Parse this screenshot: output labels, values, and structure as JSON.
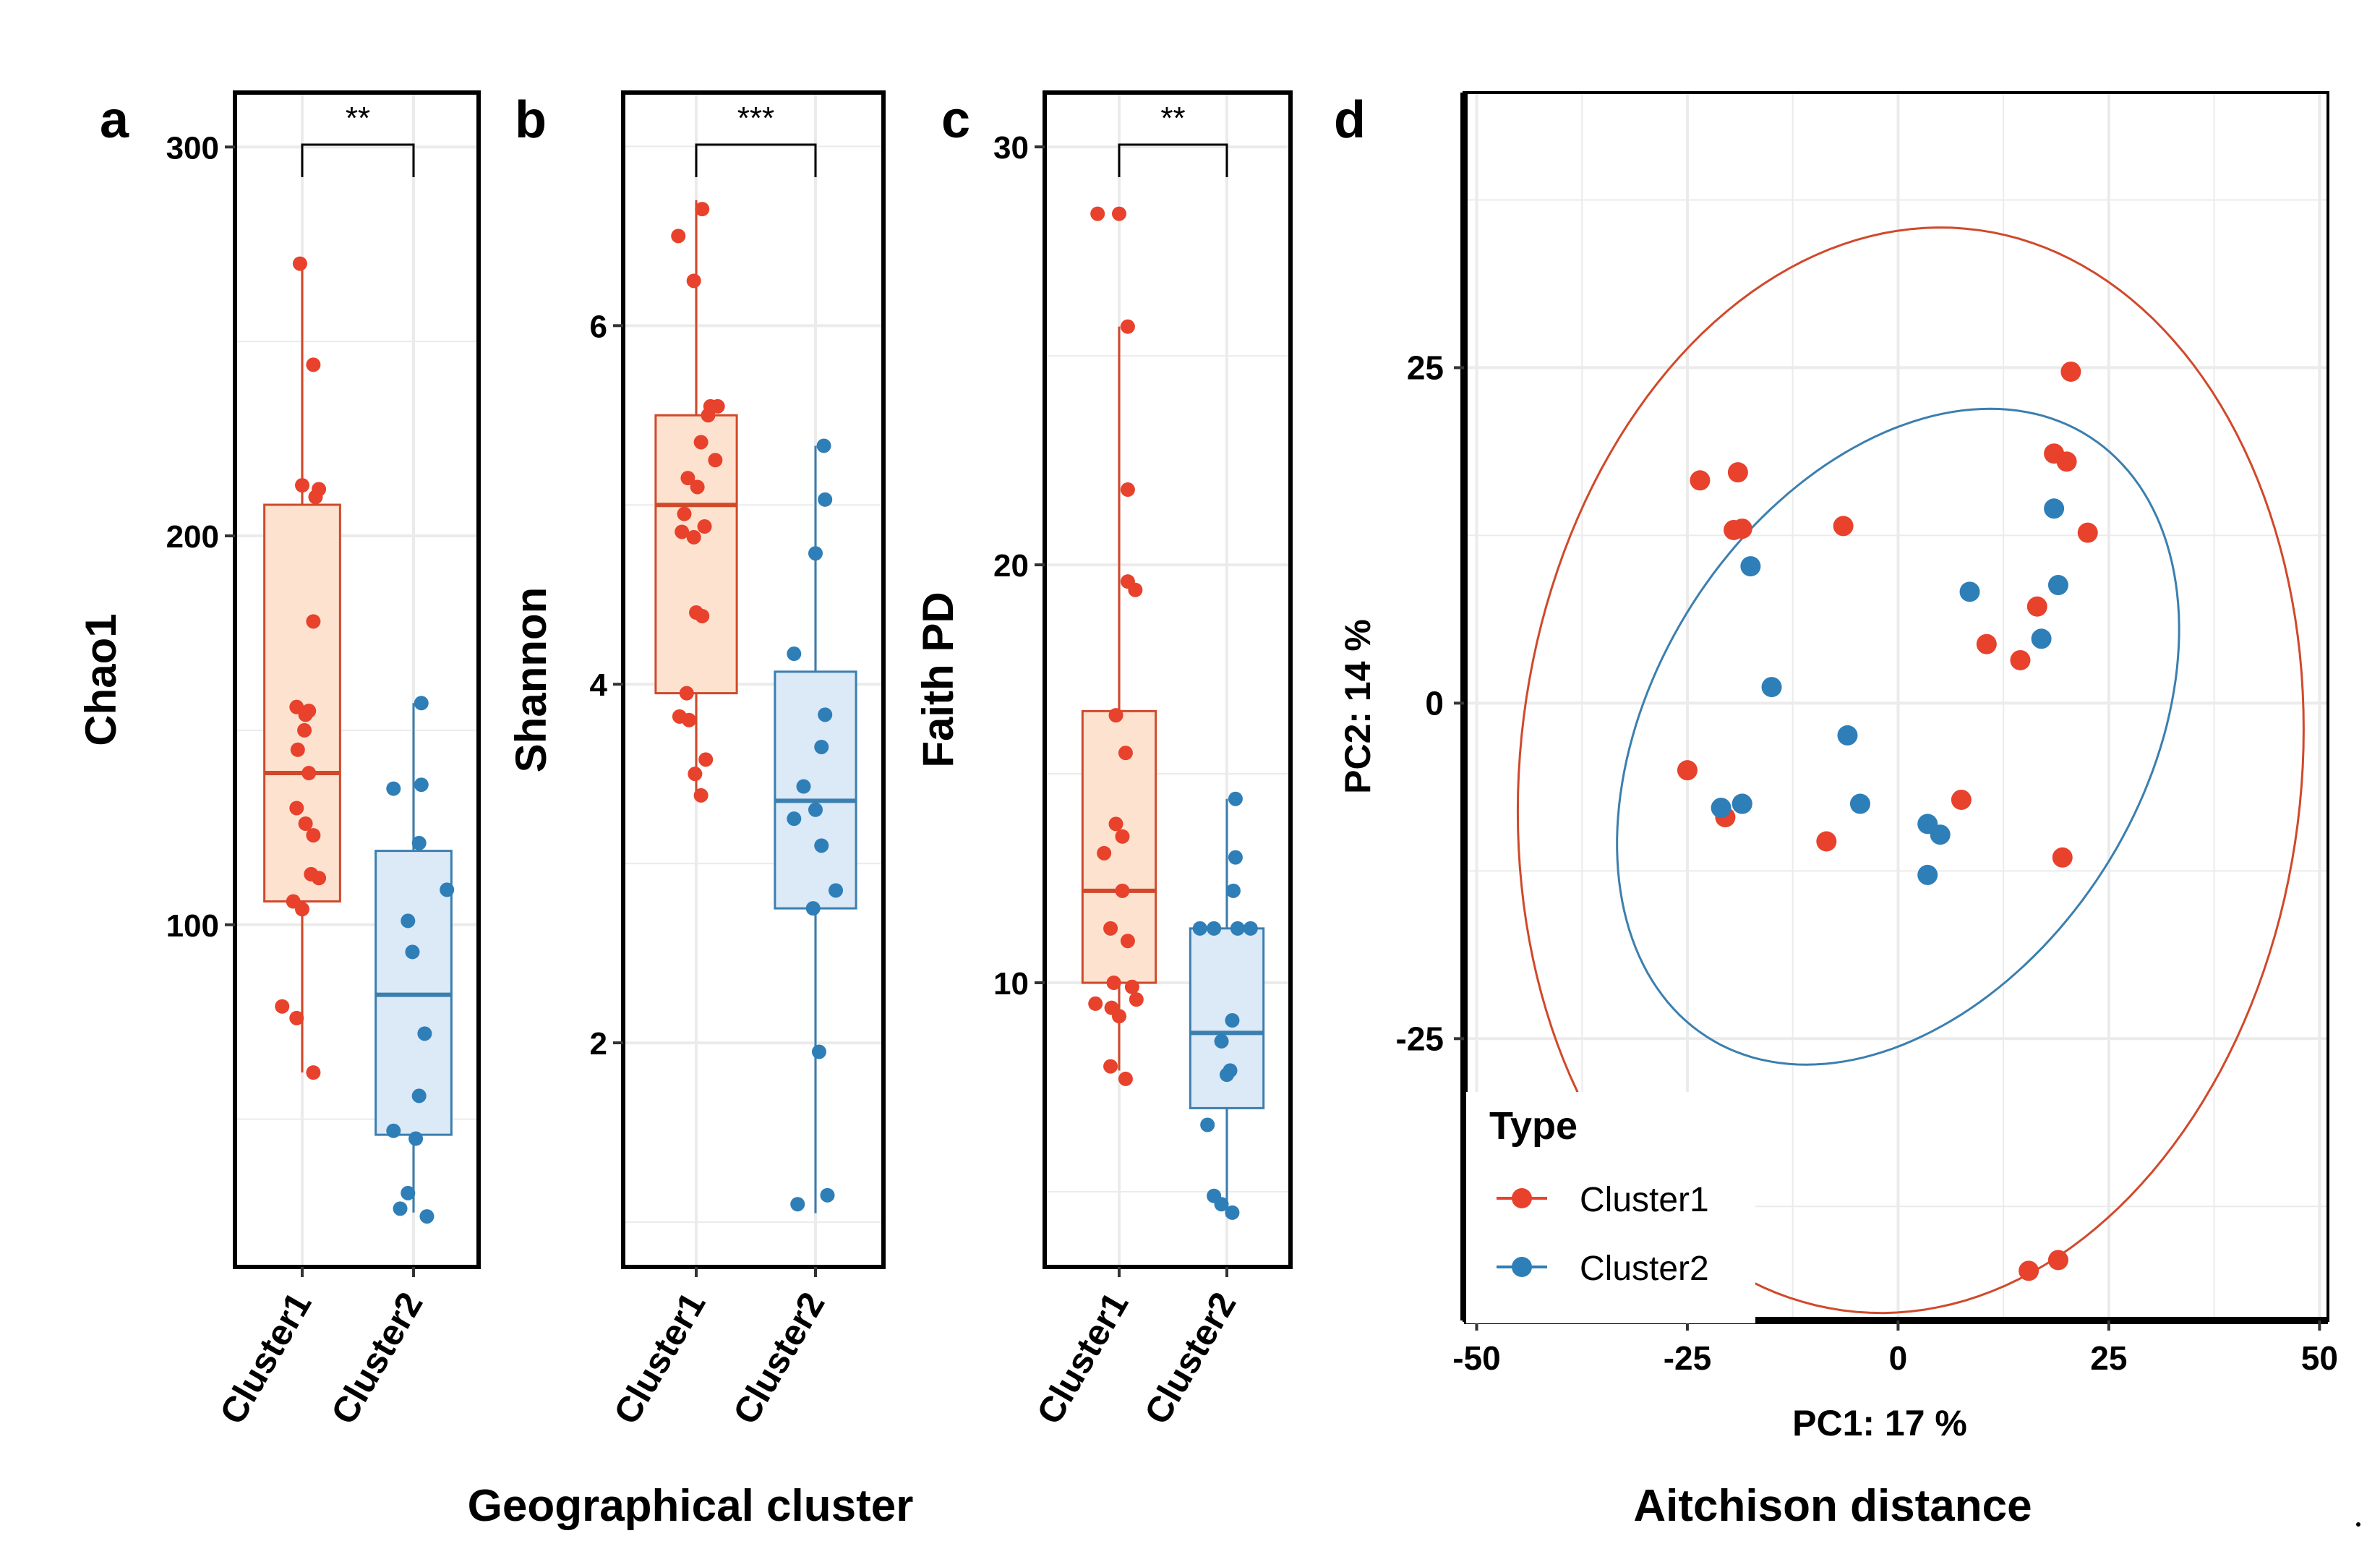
{
  "figure": {
    "bottom_label_left": "Geographical cluster",
    "bottom_label_right": "Aitchison distance"
  },
  "colors": {
    "cluster1": "#E8412C",
    "cluster1_fill": "#FDE3CF",
    "cluster1_line": "#D0492B",
    "cluster2": "#2E7EB8",
    "cluster2_fill": "#DCE9F6",
    "cluster2_line": "#3B7FAF",
    "grid": "#EBEBEB"
  },
  "chart_data": [
    {
      "id": "a",
      "type": "box",
      "panel_label": "a",
      "ylabel": "Chao1",
      "categories": [
        "Cluster1",
        "Cluster2"
      ],
      "yticks": [
        100,
        200,
        300
      ],
      "ylim": [
        12,
        314
      ],
      "significance": "**",
      "boxes": [
        {
          "name": "Cluster1",
          "q1": 106,
          "median": 139,
          "q3": 208,
          "whisker_low": 62,
          "whisker_high": 270
        },
        {
          "name": "Cluster2",
          "q1": 46,
          "median": 82,
          "q3": 119,
          "whisker_low": 26,
          "whisker_high": 157
        }
      ],
      "points": [
        [
          [
            -0.02,
            270
          ],
          [
            0.1,
            244
          ],
          [
            0.0,
            213
          ],
          [
            0.12,
            210
          ],
          [
            0.15,
            212
          ],
          [
            0.1,
            178
          ],
          [
            -0.05,
            156
          ],
          [
            0.06,
            155
          ],
          [
            0.03,
            154
          ],
          [
            0.02,
            150
          ],
          [
            -0.04,
            145
          ],
          [
            0.06,
            139
          ],
          [
            -0.05,
            130
          ],
          [
            0.03,
            126
          ],
          [
            0.1,
            123
          ],
          [
            0.08,
            113
          ],
          [
            0.15,
            112
          ],
          [
            -0.08,
            106
          ],
          [
            0.0,
            104
          ],
          [
            -0.18,
            79
          ],
          [
            -0.05,
            76
          ],
          [
            0.1,
            62
          ]
        ],
        [
          [
            0.07,
            157
          ],
          [
            -0.18,
            135
          ],
          [
            0.07,
            136
          ],
          [
            0.05,
            121
          ],
          [
            0.3,
            109
          ],
          [
            -0.05,
            101
          ],
          [
            -0.01,
            93
          ],
          [
            0.1,
            72
          ],
          [
            0.05,
            56
          ],
          [
            -0.18,
            47
          ],
          [
            0.02,
            45
          ],
          [
            -0.05,
            31
          ],
          [
            -0.12,
            27
          ],
          [
            0.12,
            25
          ]
        ]
      ]
    },
    {
      "id": "b",
      "type": "box",
      "panel_label": "b",
      "ylabel": "Shannon",
      "categories": [
        "Cluster1",
        "Cluster2"
      ],
      "yticks": [
        2,
        4,
        6
      ],
      "ylim": [
        0.75,
        7.3
      ],
      "significance": "***",
      "boxes": [
        {
          "name": "Cluster1",
          "q1": 3.95,
          "median": 5.0,
          "q3": 5.5,
          "whisker_low": 3.4,
          "whisker_high": 6.7
        },
        {
          "name": "Cluster2",
          "q1": 2.75,
          "median": 3.35,
          "q3": 4.07,
          "whisker_low": 1.05,
          "whisker_high": 5.33
        }
      ],
      "points": [
        [
          [
            0.05,
            6.65
          ],
          [
            -0.15,
            6.5
          ],
          [
            -0.02,
            6.25
          ],
          [
            0.12,
            5.55
          ],
          [
            0.18,
            5.55
          ],
          [
            0.1,
            5.5
          ],
          [
            0.04,
            5.35
          ],
          [
            0.16,
            5.25
          ],
          [
            -0.07,
            5.15
          ],
          [
            0.01,
            5.1
          ],
          [
            -0.1,
            4.95
          ],
          [
            0.07,
            4.88
          ],
          [
            -0.12,
            4.85
          ],
          [
            -0.02,
            4.82
          ],
          [
            0.0,
            4.4
          ],
          [
            0.05,
            4.38
          ],
          [
            -0.08,
            3.95
          ],
          [
            -0.14,
            3.82
          ],
          [
            -0.06,
            3.8
          ],
          [
            0.08,
            3.58
          ],
          [
            -0.01,
            3.5
          ],
          [
            0.04,
            3.38
          ]
        ],
        [
          [
            0.07,
            5.33
          ],
          [
            0.08,
            5.03
          ],
          [
            0.0,
            4.73
          ],
          [
            -0.18,
            4.17
          ],
          [
            0.08,
            3.83
          ],
          [
            0.05,
            3.65
          ],
          [
            -0.1,
            3.43
          ],
          [
            0.0,
            3.3
          ],
          [
            -0.18,
            3.25
          ],
          [
            0.05,
            3.1
          ],
          [
            0.17,
            2.85
          ],
          [
            -0.02,
            2.75
          ],
          [
            0.03,
            1.95
          ],
          [
            -0.15,
            1.1
          ],
          [
            0.1,
            1.15
          ]
        ]
      ]
    },
    {
      "id": "c",
      "type": "box",
      "panel_label": "c",
      "ylabel": "Faith  PD",
      "categories": [
        "Cluster1",
        "Cluster2"
      ],
      "yticks": [
        10,
        20,
        30
      ],
      "ylim": [
        3.2,
        31.3
      ],
      "significance": "**",
      "boxes": [
        {
          "name": "Cluster1",
          "q1": 10.0,
          "median": 12.2,
          "q3": 16.5,
          "whisker_low": 7.9,
          "whisker_high": 25.7
        },
        {
          "name": "Cluster2",
          "q1": 7.0,
          "median": 8.8,
          "q3": 11.3,
          "whisker_low": 4.4,
          "whisker_high": 14.4
        }
      ],
      "points": [
        [
          [
            -0.2,
            28.4
          ],
          [
            0.0,
            28.4
          ],
          [
            0.08,
            25.7
          ],
          [
            0.08,
            21.8
          ],
          [
            0.08,
            19.6
          ],
          [
            0.15,
            19.4
          ],
          [
            -0.03,
            16.4
          ],
          [
            0.06,
            15.5
          ],
          [
            -0.03,
            13.8
          ],
          [
            0.03,
            13.5
          ],
          [
            -0.14,
            13.1
          ],
          [
            0.03,
            12.2
          ],
          [
            -0.08,
            11.3
          ],
          [
            0.08,
            11.0
          ],
          [
            -0.05,
            10.0
          ],
          [
            0.12,
            9.9
          ],
          [
            0.16,
            9.6
          ],
          [
            -0.22,
            9.5
          ],
          [
            -0.07,
            9.4
          ],
          [
            0.0,
            9.2
          ],
          [
            -0.08,
            8.0
          ],
          [
            0.06,
            7.7
          ]
        ],
        [
          [
            0.08,
            14.4
          ],
          [
            0.08,
            13.0
          ],
          [
            0.06,
            12.2
          ],
          [
            -0.25,
            11.3
          ],
          [
            -0.12,
            11.3
          ],
          [
            0.1,
            11.3
          ],
          [
            0.22,
            11.3
          ],
          [
            0.05,
            9.1
          ],
          [
            -0.05,
            8.6
          ],
          [
            0.03,
            7.9
          ],
          [
            0.0,
            7.8
          ],
          [
            -0.18,
            6.6
          ],
          [
            -0.12,
            4.9
          ],
          [
            -0.05,
            4.7
          ],
          [
            0.05,
            4.5
          ]
        ]
      ]
    },
    {
      "id": "d",
      "type": "scatter",
      "panel_label": "d",
      "xlabel": "PC1:  17 %",
      "ylabel": "PC2:  14 %",
      "xticks": [
        -50,
        -25,
        0,
        25,
        50
      ],
      "yticks": [
        -25,
        0,
        25
      ],
      "xlim": [
        -51.5,
        51
      ],
      "ylim": [
        -46,
        45.5
      ],
      "legend_title": "Type",
      "legend_position": "bottom-left",
      "series": [
        {
          "name": "Cluster1",
          "points": [
            [
              20.5,
              24.7
            ],
            [
              18.5,
              18.6
            ],
            [
              20.0,
              18.0
            ],
            [
              -23.5,
              16.6
            ],
            [
              -19.0,
              17.2
            ],
            [
              -19.5,
              12.9
            ],
            [
              -18.5,
              13.0
            ],
            [
              -6.5,
              13.2
            ],
            [
              22.5,
              12.7
            ],
            [
              16.5,
              7.2
            ],
            [
              10.5,
              4.4
            ],
            [
              14.5,
              3.2
            ],
            [
              -25.0,
              -5.0
            ],
            [
              -20.5,
              -8.5
            ],
            [
              -18.5,
              -7.5
            ],
            [
              -8.5,
              -10.3
            ],
            [
              7.5,
              -7.2
            ],
            [
              19.5,
              -11.5
            ],
            [
              15.5,
              -42.3
            ],
            [
              19.0,
              -41.5
            ]
          ]
        },
        {
          "name": "Cluster2",
          "points": [
            [
              18.5,
              14.5
            ],
            [
              -17.5,
              10.2
            ],
            [
              8.5,
              8.3
            ],
            [
              19.0,
              8.8
            ],
            [
              17.0,
              4.8
            ],
            [
              -15.0,
              1.2
            ],
            [
              -6.0,
              -2.4
            ],
            [
              -21.0,
              -7.8
            ],
            [
              -18.5,
              -7.5
            ],
            [
              -4.5,
              -7.5
            ],
            [
              3.5,
              -9.0
            ],
            [
              5.0,
              -9.8
            ],
            [
              3.5,
              -12.8
            ]
          ]
        }
      ],
      "ellipses": [
        {
          "series": "Cluster1",
          "cx": 1.5,
          "cy": -5,
          "rx": 47,
          "ry": 40,
          "angle_deg": 14
        },
        {
          "series": "Cluster2",
          "cx": 0,
          "cy": -2.5,
          "rx": 35,
          "ry": 22,
          "angle_deg": 23
        }
      ]
    }
  ]
}
